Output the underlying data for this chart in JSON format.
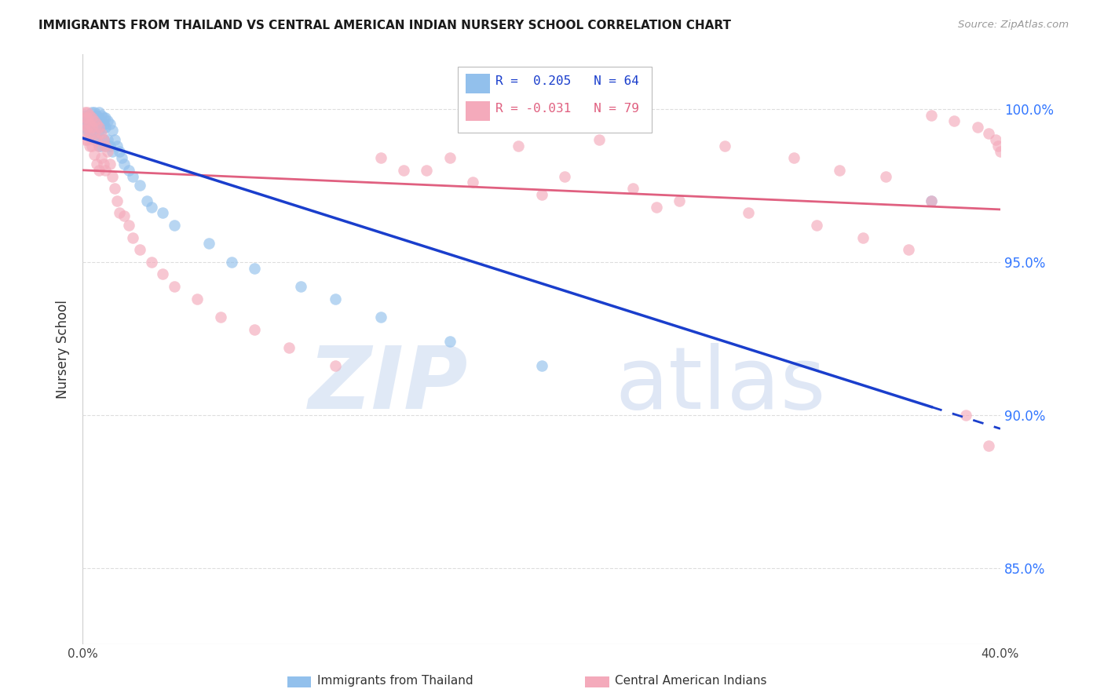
{
  "title": "IMMIGRANTS FROM THAILAND VS CENTRAL AMERICAN INDIAN NURSERY SCHOOL CORRELATION CHART",
  "source": "Source: ZipAtlas.com",
  "ylabel": "Nursery School",
  "y_tick_labels": [
    "85.0%",
    "90.0%",
    "95.0%",
    "100.0%"
  ],
  "y_tick_values": [
    0.85,
    0.9,
    0.95,
    1.0
  ],
  "xlim": [
    0.0,
    0.4
  ],
  "ylim": [
    0.825,
    1.018
  ],
  "legend_blue_label": "Immigrants from Thailand",
  "legend_pink_label": "Central American Indians",
  "blue_color": "#92C0EC",
  "pink_color": "#F4AABB",
  "blue_line_color": "#1A3ECC",
  "pink_line_color": "#E06080",
  "background_color": "#FFFFFF",
  "grid_color": "#DDDDDD",
  "blue_R": 0.205,
  "pink_R": -0.031,
  "blue_x": [
    0.001,
    0.001,
    0.001,
    0.002,
    0.002,
    0.002,
    0.002,
    0.003,
    0.003,
    0.003,
    0.004,
    0.004,
    0.004,
    0.004,
    0.005,
    0.005,
    0.005,
    0.005,
    0.006,
    0.006,
    0.006,
    0.006,
    0.007,
    0.007,
    0.007,
    0.007,
    0.007,
    0.008,
    0.008,
    0.008,
    0.008,
    0.009,
    0.009,
    0.009,
    0.01,
    0.01,
    0.01,
    0.011,
    0.011,
    0.012,
    0.012,
    0.013,
    0.013,
    0.014,
    0.015,
    0.016,
    0.017,
    0.018,
    0.02,
    0.022,
    0.025,
    0.028,
    0.03,
    0.035,
    0.04,
    0.055,
    0.065,
    0.075,
    0.095,
    0.11,
    0.13,
    0.16,
    0.2,
    0.37
  ],
  "blue_y": [
    0.998,
    0.996,
    0.994,
    0.998,
    0.997,
    0.995,
    0.993,
    0.997,
    0.995,
    0.992,
    0.999,
    0.997,
    0.995,
    0.992,
    0.999,
    0.997,
    0.995,
    0.99,
    0.998,
    0.996,
    0.994,
    0.99,
    0.999,
    0.997,
    0.995,
    0.993,
    0.988,
    0.998,
    0.996,
    0.993,
    0.988,
    0.997,
    0.995,
    0.99,
    0.997,
    0.994,
    0.988,
    0.996,
    0.99,
    0.995,
    0.988,
    0.993,
    0.986,
    0.99,
    0.988,
    0.986,
    0.984,
    0.982,
    0.98,
    0.978,
    0.975,
    0.97,
    0.968,
    0.966,
    0.962,
    0.956,
    0.95,
    0.948,
    0.942,
    0.938,
    0.932,
    0.924,
    0.916,
    0.97
  ],
  "pink_x": [
    0.001,
    0.001,
    0.001,
    0.001,
    0.001,
    0.002,
    0.002,
    0.002,
    0.002,
    0.003,
    0.003,
    0.003,
    0.003,
    0.004,
    0.004,
    0.004,
    0.005,
    0.005,
    0.005,
    0.006,
    0.006,
    0.006,
    0.007,
    0.007,
    0.007,
    0.008,
    0.008,
    0.009,
    0.009,
    0.01,
    0.01,
    0.011,
    0.012,
    0.013,
    0.014,
    0.015,
    0.016,
    0.018,
    0.02,
    0.022,
    0.025,
    0.03,
    0.035,
    0.04,
    0.05,
    0.06,
    0.075,
    0.09,
    0.11,
    0.13,
    0.15,
    0.17,
    0.2,
    0.225,
    0.25,
    0.28,
    0.31,
    0.33,
    0.35,
    0.37,
    0.38,
    0.39,
    0.395,
    0.398,
    0.399,
    0.4,
    0.21,
    0.24,
    0.26,
    0.29,
    0.32,
    0.34,
    0.36,
    0.37,
    0.385,
    0.395,
    0.19,
    0.16,
    0.14
  ],
  "pink_y": [
    0.999,
    0.997,
    0.995,
    0.993,
    0.99,
    0.999,
    0.997,
    0.994,
    0.99,
    0.998,
    0.995,
    0.992,
    0.988,
    0.997,
    0.994,
    0.988,
    0.996,
    0.992,
    0.985,
    0.995,
    0.99,
    0.982,
    0.994,
    0.988,
    0.98,
    0.992,
    0.984,
    0.99,
    0.982,
    0.988,
    0.98,
    0.986,
    0.982,
    0.978,
    0.974,
    0.97,
    0.966,
    0.965,
    0.962,
    0.958,
    0.954,
    0.95,
    0.946,
    0.942,
    0.938,
    0.932,
    0.928,
    0.922,
    0.916,
    0.984,
    0.98,
    0.976,
    0.972,
    0.99,
    0.968,
    0.988,
    0.984,
    0.98,
    0.978,
    0.998,
    0.996,
    0.994,
    0.992,
    0.99,
    0.988,
    0.986,
    0.978,
    0.974,
    0.97,
    0.966,
    0.962,
    0.958,
    0.954,
    0.97,
    0.9,
    0.89,
    0.988,
    0.984,
    0.98
  ]
}
